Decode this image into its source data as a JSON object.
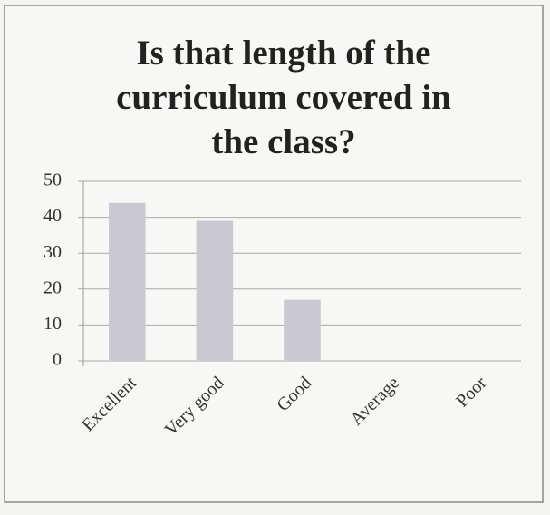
{
  "chart_data": {
    "type": "bar",
    "title": "Is that length of the curriculum covered in the class?",
    "categories": [
      "Excellent",
      "Very good",
      "Good",
      "Average",
      "Poor"
    ],
    "values": [
      44,
      39,
      17,
      0,
      0
    ],
    "color": "#c9c9cf",
    "ylim": [
      0,
      50
    ],
    "yticks": [
      0,
      10,
      20,
      30,
      40,
      50
    ],
    "grid": true
  }
}
